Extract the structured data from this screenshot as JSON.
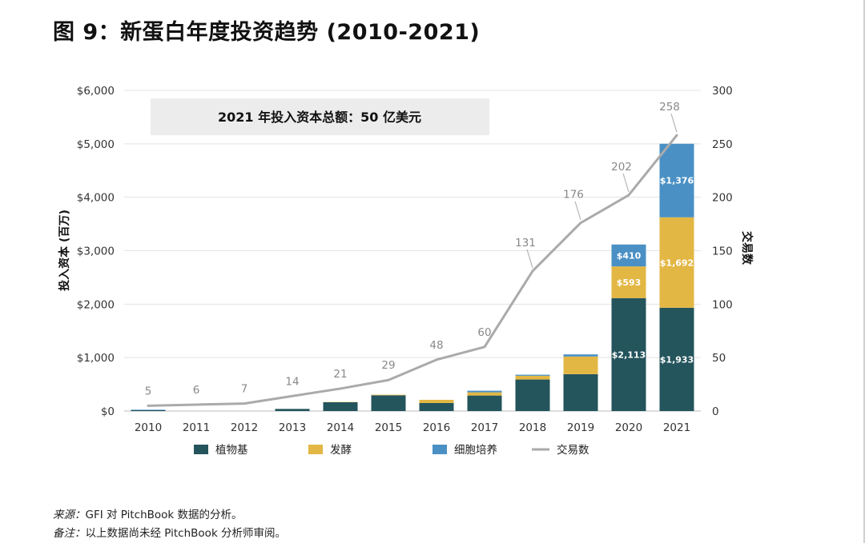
{
  "header": {
    "title": "图 9：新蛋白年度投资趋势 (2010-2021)"
  },
  "chart_data": {
    "type": "bar",
    "stacked": true,
    "categories": [
      "2010",
      "2011",
      "2012",
      "2013",
      "2014",
      "2015",
      "2016",
      "2017",
      "2018",
      "2019",
      "2020",
      "2021"
    ],
    "series": [
      {
        "name": "植物基",
        "color": "#24545c",
        "values": [
          15,
          0,
          0,
          40,
          165,
          295,
          150,
          290,
          590,
          690,
          2113,
          1933
        ]
      },
      {
        "name": "发酵",
        "color": "#e3b744",
        "values": [
          0,
          0,
          0,
          0,
          5,
          10,
          60,
          60,
          70,
          330,
          593,
          1692
        ]
      },
      {
        "name": "细胞培养",
        "color": "#4a90c4",
        "values": [
          10,
          0,
          0,
          0,
          0,
          0,
          0,
          30,
          20,
          40,
          410,
          1376
        ]
      }
    ],
    "line_series": {
      "name": "交易数",
      "color": "#aaaaaa",
      "values": [
        5,
        6,
        7,
        14,
        21,
        29,
        48,
        60,
        131,
        176,
        202,
        258
      ]
    },
    "bar_labels": {
      "2020": {
        "植物基": "$2,113",
        "发酵": "$593",
        "细胞培养": "$410"
      },
      "2021": {
        "植物基": "$1,933",
        "发酵": "$1,692",
        "细胞培养": "$1,376"
      }
    },
    "annotation": "2021 年投入资本总额：50 亿美元",
    "ylabel": "投入资本 (百万)",
    "ylabel_right": "交易数",
    "ylim": [
      0,
      6000
    ],
    "ylim_right": [
      0,
      300
    ],
    "yticks": [
      "$0",
      "$1,000",
      "$2,000",
      "$3,000",
      "$4,000",
      "$5,000",
      "$6,000"
    ],
    "yticks_right": [
      "0",
      "50",
      "100",
      "150",
      "200",
      "250",
      "300"
    ],
    "grid": true,
    "legend_position": "bottom"
  },
  "footer": {
    "source_label": "来源：",
    "source_text": "GFI 对 PitchBook 数据的分析。",
    "note_label": "备注：",
    "note_text": "以上数据尚未经 PitchBook 分析师审阅。"
  }
}
